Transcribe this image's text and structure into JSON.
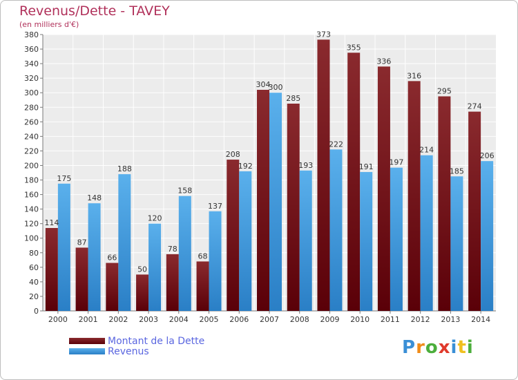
{
  "header": {
    "title": "Revenus/Dette - TAVEY",
    "subtitle": "(en milliers d'€)"
  },
  "legend": {
    "items": [
      {
        "label": "Montant de la Dette",
        "color": "#6b0f14"
      },
      {
        "label": "Revenus",
        "color": "#3a96de"
      }
    ]
  },
  "logo": {
    "letters": [
      {
        "ch": "P",
        "color": "#3a8fd6"
      },
      {
        "ch": "r",
        "color": "#f08c1a"
      },
      {
        "ch": "o",
        "color": "#4cae3c"
      },
      {
        "ch": "x",
        "color": "#e03a2c"
      },
      {
        "ch": "i",
        "color": "#3a8fd6"
      },
      {
        "ch": "t",
        "color": "#f0c020"
      },
      {
        "ch": "i",
        "color": "#4cae3c"
      }
    ]
  },
  "chart_data": {
    "type": "bar",
    "title": "Revenus/Dette - TAVEY",
    "subtitle": "(en milliers d'€)",
    "categories": [
      "2000",
      "2001",
      "2002",
      "2003",
      "2004",
      "2005",
      "2006",
      "2007",
      "2008",
      "2009",
      "2010",
      "2011",
      "2012",
      "2013",
      "2014"
    ],
    "series": [
      {
        "name": "Montant de la Dette",
        "color": "#6b0f14",
        "values": [
          114,
          87,
          66,
          50,
          78,
          68,
          208,
          304,
          285,
          373,
          355,
          336,
          316,
          295,
          274
        ]
      },
      {
        "name": "Revenus",
        "color": "#3a96de",
        "values": [
          175,
          148,
          188,
          120,
          158,
          137,
          192,
          300,
          193,
          222,
          191,
          197,
          214,
          185,
          206
        ]
      }
    ],
    "ylim": [
      0,
      380
    ],
    "ystep": 20,
    "grid": true,
    "legend_position": "bottom-left"
  }
}
